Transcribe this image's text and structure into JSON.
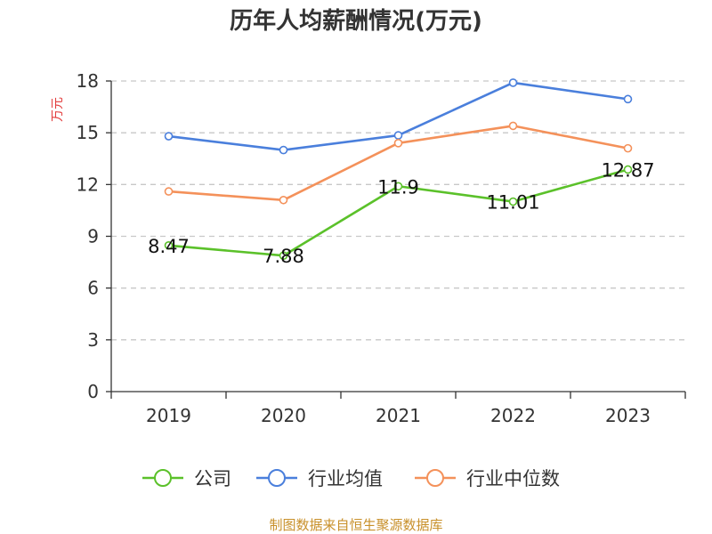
{
  "chart_data": {
    "type": "line",
    "title": "历年人均薪酬情况(万元)",
    "ylabel": "万元",
    "xlabel": "",
    "categories": [
      "2019",
      "2020",
      "2021",
      "2022",
      "2023"
    ],
    "ylim": [
      0,
      18
    ],
    "yticks": [
      0,
      3,
      6,
      9,
      12,
      15,
      18
    ],
    "grid": "horizontal-dashed",
    "legend_position": "bottom",
    "series": [
      {
        "name": "公司",
        "color": "#5bc12a",
        "values": [
          8.47,
          7.88,
          11.9,
          11.01,
          12.87
        ],
        "labels": [
          "8.47",
          "7.88",
          "11.9",
          "11.01",
          "12.87"
        ]
      },
      {
        "name": "行业均值",
        "color": "#4a7fdc",
        "values": [
          14.8,
          14.0,
          14.85,
          17.9,
          16.95
        ]
      },
      {
        "name": "行业中位数",
        "color": "#f4915a",
        "values": [
          11.6,
          11.1,
          14.4,
          15.4,
          14.1
        ]
      }
    ],
    "source": "制图数据来自恒生聚源数据库"
  }
}
